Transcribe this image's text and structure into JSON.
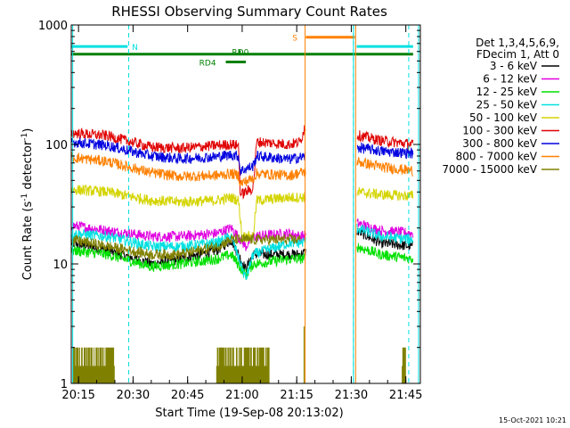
{
  "chart_data": {
    "type": "line",
    "title": "RHESSI Observing Summary Count Rates",
    "xlabel": "Start Time (19-Sep-08 20:13:02)",
    "ylabel_main": "Count Rate (s",
    "ylabel_sup1": "-1",
    "ylabel_mid": " detector",
    "ylabel_sup2": "-1",
    "ylabel_end": ")",
    "timestamp": "15-Oct-2021 10:21",
    "yscale": "log",
    "ylim": [
      1,
      1000
    ],
    "xlim_minutes": [
      0,
      96
    ],
    "x_ticks": [
      {
        "m": 2,
        "label": "20:15"
      },
      {
        "m": 17,
        "label": "20:30"
      },
      {
        "m": 32,
        "label": "20:45"
      },
      {
        "m": 47,
        "label": "21:00"
      },
      {
        "m": 62,
        "label": "21:15"
      },
      {
        "m": 77,
        "label": "21:30"
      },
      {
        "m": 92,
        "label": "21:45"
      }
    ],
    "y_ticks": [
      {
        "v": 1,
        "label": "1"
      },
      {
        "v": 10,
        "label": "10"
      },
      {
        "v": 100,
        "label": "100"
      },
      {
        "v": 1000,
        "label": "1000"
      }
    ],
    "legend_header": [
      "Det 1,3,4,5,6,9,",
      "FDecim 1, Att 0"
    ],
    "gaps": [
      [
        64.5,
        78.5
      ]
    ],
    "series": [
      {
        "name": "3 - 6 keV",
        "color": "#000000",
        "points": [
          [
            0,
            15
          ],
          [
            10,
            13
          ],
          [
            22,
            10
          ],
          [
            30,
            11
          ],
          [
            40,
            13
          ],
          [
            44,
            16
          ],
          [
            48,
            9
          ],
          [
            50,
            12
          ],
          [
            60,
            12
          ],
          [
            63,
            12
          ],
          [
            78.5,
            19
          ],
          [
            85,
            15
          ],
          [
            94,
            14
          ]
        ]
      },
      {
        "name": "6 - 12 keV",
        "color": "#e000e0",
        "points": [
          [
            0,
            21
          ],
          [
            10,
            19
          ],
          [
            22,
            17
          ],
          [
            30,
            17
          ],
          [
            40,
            18
          ],
          [
            44,
            20
          ],
          [
            48,
            14
          ],
          [
            50,
            17
          ],
          [
            60,
            18
          ],
          [
            63,
            17
          ],
          [
            78.5,
            22
          ],
          [
            85,
            19
          ],
          [
            94,
            18
          ]
        ]
      },
      {
        "name": "12 - 25 keV",
        "color": "#00e000",
        "points": [
          [
            0,
            13
          ],
          [
            10,
            12
          ],
          [
            22,
            9.5
          ],
          [
            30,
            10
          ],
          [
            40,
            11
          ],
          [
            44,
            12
          ],
          [
            48,
            8
          ],
          [
            50,
            10
          ],
          [
            60,
            11
          ],
          [
            63,
            11
          ],
          [
            78.5,
            14
          ],
          [
            85,
            12
          ],
          [
            94,
            11
          ]
        ]
      },
      {
        "name": "25 - 50 keV",
        "color": "#00e0e0",
        "points": [
          [
            0,
            18
          ],
          [
            10,
            17
          ],
          [
            22,
            14
          ],
          [
            30,
            14
          ],
          [
            40,
            15
          ],
          [
            44,
            17
          ],
          [
            48,
            7.5
          ],
          [
            50,
            12
          ],
          [
            60,
            15
          ],
          [
            63,
            15
          ],
          [
            78.5,
            20
          ],
          [
            85,
            17
          ],
          [
            94,
            16
          ]
        ]
      },
      {
        "name": "50 - 100 keV",
        "color": "#d4d400",
        "points": [
          [
            0,
            42
          ],
          [
            10,
            40
          ],
          [
            22,
            34
          ],
          [
            30,
            33
          ],
          [
            40,
            34
          ],
          [
            44,
            36
          ],
          [
            46,
            34
          ],
          [
            47,
            17
          ],
          [
            50,
            17
          ],
          [
            51,
            34
          ],
          [
            60,
            36
          ],
          [
            63,
            36
          ],
          [
            78.5,
            40
          ],
          [
            85,
            38
          ],
          [
            94,
            37
          ]
        ]
      },
      {
        "name": "100 - 300 keV",
        "color": "#e00000",
        "points": [
          [
            0,
            125
          ],
          [
            10,
            118
          ],
          [
            22,
            95
          ],
          [
            30,
            93
          ],
          [
            40,
            98
          ],
          [
            44,
            100
          ],
          [
            46,
            98
          ],
          [
            46.5,
            38
          ],
          [
            50,
            43
          ],
          [
            51,
            105
          ],
          [
            60,
            100
          ],
          [
            63,
            105
          ],
          [
            64.2,
            140
          ],
          [
            78.5,
            120
          ],
          [
            85,
            108
          ],
          [
            94,
            100
          ]
        ]
      },
      {
        "name": "300 - 800 keV",
        "color": "#0000e0",
        "points": [
          [
            0,
            105
          ],
          [
            10,
            98
          ],
          [
            22,
            80
          ],
          [
            30,
            76
          ],
          [
            40,
            79
          ],
          [
            44,
            82
          ],
          [
            46,
            80
          ],
          [
            46.5,
            60
          ],
          [
            50,
            66
          ],
          [
            51,
            80
          ],
          [
            60,
            75
          ],
          [
            63,
            78
          ],
          [
            78.5,
            95
          ],
          [
            85,
            88
          ],
          [
            94,
            84
          ]
        ]
      },
      {
        "name": "800 - 7000 keV",
        "color": "#ff8000",
        "points": [
          [
            0,
            78
          ],
          [
            10,
            72
          ],
          [
            22,
            58
          ],
          [
            30,
            54
          ],
          [
            40,
            55
          ],
          [
            44,
            57
          ],
          [
            46,
            55
          ],
          [
            46.5,
            47
          ],
          [
            50,
            52
          ],
          [
            51,
            57
          ],
          [
            60,
            55
          ],
          [
            63,
            58
          ],
          [
            78.5,
            72
          ],
          [
            85,
            65
          ],
          [
            94,
            60
          ]
        ]
      },
      {
        "name": "7000 - 15000 keV",
        "color": "#808000",
        "points": [
          [
            0,
            16
          ],
          [
            10,
            14
          ],
          [
            22,
            12
          ],
          [
            30,
            12
          ],
          [
            40,
            14
          ],
          [
            44,
            16
          ],
          [
            48,
            16
          ],
          [
            50,
            16
          ],
          [
            60,
            16
          ],
          [
            63,
            16
          ]
        ]
      }
    ],
    "spikes": [
      {
        "color": "#ff8000",
        "m": 64.3,
        "low": 1,
        "high": 1000
      },
      {
        "color": "#ff8000",
        "m": 78.2,
        "low": 1,
        "high": 1000
      },
      {
        "color": "#00e0e0",
        "m": 0.4,
        "low": 1,
        "high": 1000
      },
      {
        "color": "#00e0e0",
        "m": 77.6,
        "low": 1,
        "high": 1000
      },
      {
        "color": "#00e0e0",
        "m": 95.5,
        "low": 1,
        "high": 1000
      },
      {
        "color": "#808000",
        "m": 64.0,
        "low": 1,
        "high": 3
      }
    ],
    "dashed_lines": [
      {
        "color": "#00e0e0",
        "m": 15.8
      },
      {
        "color": "#00e0e0",
        "m": 77.6
      },
      {
        "color": "#00e0e0",
        "m": 92.8
      }
    ],
    "low_noise_blocks": [
      {
        "color": "#808000",
        "start": 0.5,
        "end": 12,
        "top": 2
      },
      {
        "color": "#808000",
        "start": 40,
        "end": 54.5,
        "top": 2
      },
      {
        "color": "#808000",
        "start": 91,
        "end": 92,
        "top": 2
      }
    ],
    "flag_bars": [
      {
        "label": "N",
        "color": "#00e0e0",
        "start": 0,
        "end": 15.5,
        "level": 660,
        "label_m": 17.5
      },
      {
        "label": "",
        "color": "#00e0e0",
        "start": 78.5,
        "end": 94,
        "level": 660,
        "label_m": null
      },
      {
        "label": "",
        "color": "#008000",
        "start": 0,
        "end": 94,
        "level": 570,
        "label_m": null
      },
      {
        "label": "RD0",
        "color": "#008000",
        "start": 46,
        "end": 46.6,
        "level": 600,
        "label_m": 46.5
      },
      {
        "label": "RD4",
        "color": "#008000",
        "start": 42.5,
        "end": 48,
        "level": 490,
        "label_m": 37.5
      },
      {
        "label": "S",
        "color": "#ff8000",
        "start": 64.5,
        "end": 78,
        "level": 790,
        "label_m": 61.5
      }
    ]
  }
}
